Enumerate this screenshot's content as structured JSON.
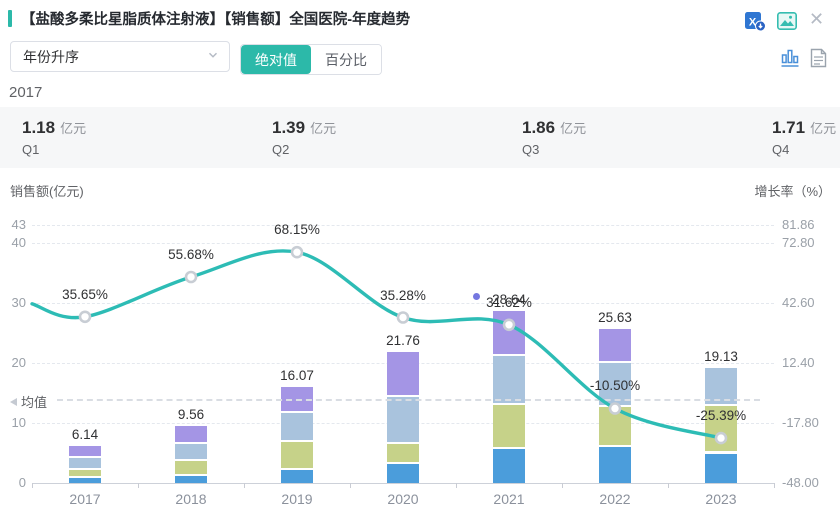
{
  "header": {
    "title": "【盐酸多柔比星脂质体注射液】【销售额】全国医院-年度趋势",
    "icons": [
      "excel-export-icon",
      "image-export-icon",
      "close-icon"
    ],
    "accent_color": "#2cb9a9"
  },
  "controls": {
    "sort_dropdown": {
      "value": "年份升序",
      "icon": "chevron-down-icon"
    },
    "value_mode": {
      "absolute_label": "绝对值",
      "percent_label": "百分比",
      "active": "绝对值",
      "active_color": "#2cb9a9"
    },
    "view_toggle": {
      "icons": [
        "bar-chart-view-icon",
        "table-view-icon"
      ],
      "active": "bar-chart-view-icon"
    }
  },
  "summary": {
    "year": "2017",
    "unit": "亿元",
    "quarters": [
      {
        "label": "Q1",
        "value": "1.18"
      },
      {
        "label": "Q2",
        "value": "1.39"
      },
      {
        "label": "Q3",
        "value": "1.86"
      },
      {
        "label": "Q4",
        "value": "1.71"
      }
    ]
  },
  "chart_data": {
    "type": "bar+line",
    "categories": [
      "2017",
      "2018",
      "2019",
      "2020",
      "2021",
      "2022",
      "2023"
    ],
    "left_axis": {
      "label": "销售额(亿元)",
      "ticks": [
        0,
        10,
        20,
        30,
        40,
        43
      ],
      "range": [
        0,
        43
      ],
      "grid": true
    },
    "right_axis": {
      "label": "增长率（%）",
      "tick_labels": [
        "-48.00",
        "-17.80",
        "12.40",
        "42.60",
        "72.80",
        "81.86"
      ],
      "range": [
        -48,
        81.86
      ]
    },
    "stack_quarters": [
      "Q1",
      "Q2",
      "Q3",
      "Q4"
    ],
    "stack_colors": [
      "#4b9ddb",
      "#c6d289",
      "#a9c3dd",
      "#a495e5"
    ],
    "bars": {
      "name": "销售额",
      "totals": [
        6.14,
        9.56,
        16.07,
        21.76,
        28.64,
        25.63,
        19.13
      ],
      "total_labels": [
        "6.14",
        "9.56",
        "16.07",
        "21.76",
        "28.64",
        "25.63",
        "19.13"
      ],
      "segments_est": [
        [
          1.18,
          1.39,
          1.86,
          1.71
        ],
        [
          1.57,
          2.4,
          2.89,
          2.7
        ],
        [
          2.54,
          4.67,
          4.74,
          4.12
        ],
        [
          3.58,
          3.21,
          7.95,
          7.02
        ],
        [
          6.05,
          7.28,
          8.2,
          7.11
        ],
        [
          6.3,
          6.67,
          7.35,
          5.31
        ],
        [
          5.25,
          7.9,
          5.98
        ]
      ]
    },
    "line": {
      "name": "增长率",
      "values_pct": [
        35.65,
        55.68,
        68.15,
        35.28,
        31.62,
        -10.5,
        -25.39
      ],
      "labels": [
        "35.65%",
        "55.68%",
        "68.15%",
        "35.28%",
        "31.62%",
        "-10.50%",
        "-25.39%"
      ],
      "color": "#2dbcb5",
      "marker": "open-circle"
    },
    "mean_line": {
      "label": "均值",
      "left_axis_value": 13.8
    },
    "annotations": {
      "overlap_dot_color": "#7577e0"
    },
    "legend": "none"
  }
}
